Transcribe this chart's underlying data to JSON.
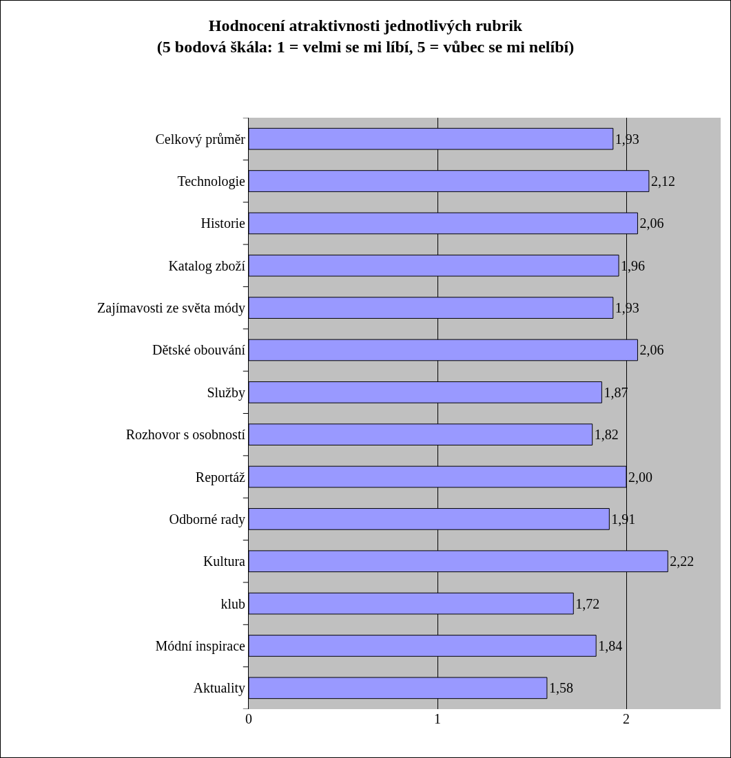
{
  "chart_data": {
    "type": "bar",
    "orientation": "horizontal",
    "title": "Hodnocení atraktivnosti jednotlivých rubrik\n(5 bodová škála: 1 = velmi se mi líbí, 5 = vůbec se mi nelíbí)",
    "categories": [
      "Celkový průměr",
      "Technologie",
      "Historie",
      "Katalog zboží",
      "Zajímavosti ze světa módy",
      "Dětské obouvání",
      "Služby",
      "Rozhovor s osobností",
      "Reportáž",
      "Odborné rady",
      "Kultura",
      "klub",
      "Módní inspirace",
      "Aktuality"
    ],
    "values": [
      1.93,
      2.12,
      2.06,
      1.96,
      1.93,
      2.06,
      1.87,
      1.82,
      2.0,
      1.91,
      2.22,
      1.72,
      1.84,
      1.58
    ],
    "value_labels": [
      "1,93",
      "2,12",
      "2,06",
      "1,96",
      "1,93",
      "2,06",
      "1,87",
      "1,82",
      "2,00",
      "1,91",
      "2,22",
      "1,72",
      "1,84",
      "1,58"
    ],
    "color": "#9999ff",
    "xlim": [
      0,
      2.5
    ],
    "xticks": [
      0,
      1,
      2
    ],
    "grid": "x"
  }
}
